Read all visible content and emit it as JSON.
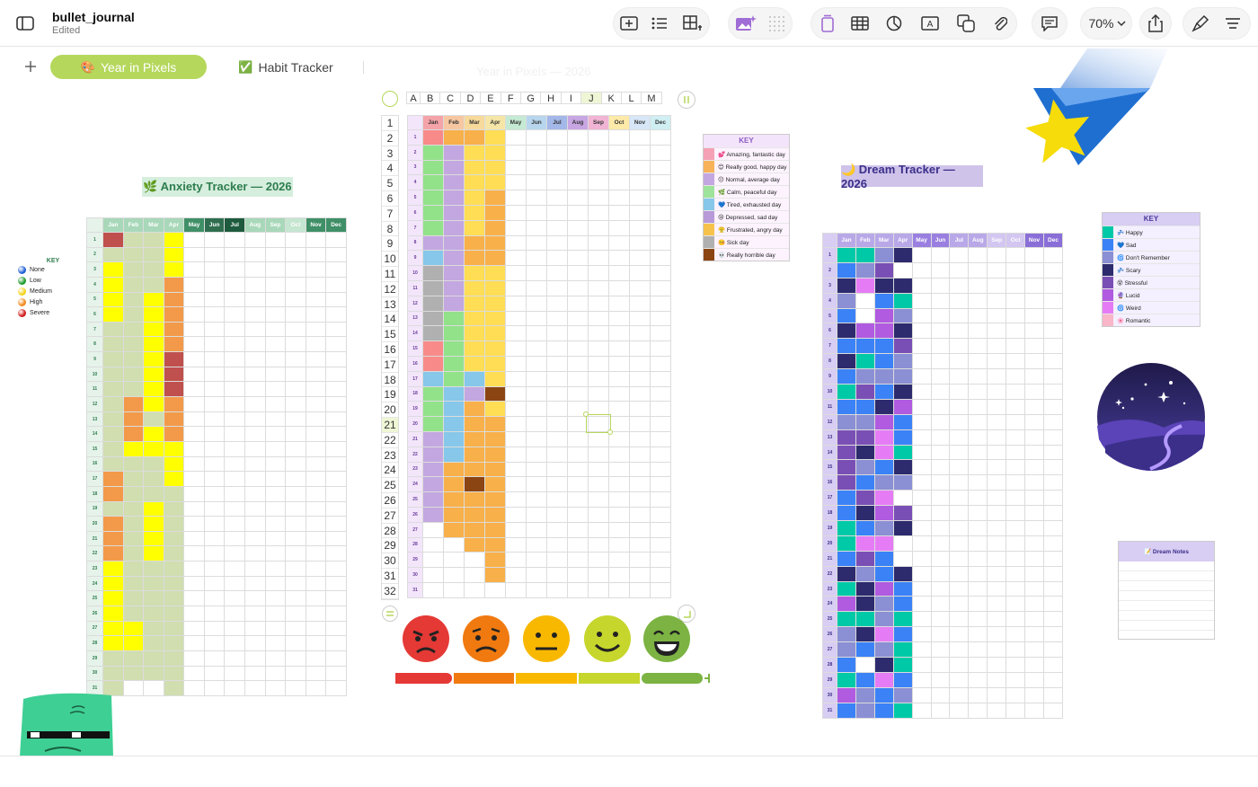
{
  "document": {
    "title": "bullet_journal",
    "status": "Edited"
  },
  "toolbar": {
    "zoom": "70%"
  },
  "tabs": [
    {
      "label": "Year in Pixels",
      "icon": "palette-icon",
      "emoji": "🎨",
      "active": true
    },
    {
      "label": "Habit Tracker",
      "icon": "check-icon",
      "emoji": "✅",
      "active": false
    }
  ],
  "months": [
    "Jan",
    "Feb",
    "Mar",
    "Apr",
    "May",
    "Jun",
    "Jul",
    "Aug",
    "Sep",
    "Oct",
    "Nov",
    "Dec"
  ],
  "col_letters": [
    "A",
    "B",
    "C",
    "D",
    "E",
    "F",
    "G",
    "H",
    "I",
    "J",
    "K",
    "L",
    "M"
  ],
  "anxiety": {
    "title": "🌿 Anxiety Tracker — 2026",
    "key_title": "KEY",
    "key": [
      {
        "label": "None",
        "color": "#1f5fd6"
      },
      {
        "label": "Low",
        "color": "#1a9a2a"
      },
      {
        "label": "Medium",
        "color": "#f2d31b"
      },
      {
        "label": "High",
        "color": "#f08a1c"
      },
      {
        "label": "Severe",
        "color": "#d11a1a"
      }
    ],
    "header_colors": [
      "#a8d8b9",
      "#a8d8b9",
      "#a8d8b9",
      "#a8d8b9",
      "#3f8f67",
      "#2e6e4f",
      "#1e5a3d",
      "#a8d8b9",
      "#a8d8b9",
      "#c5e6d0",
      "#3f8f67",
      "#3f8f67"
    ],
    "palette": {
      "g": "#d0deb0",
      "y": "#ffff00",
      "o": "#f39a4a",
      "r": "#c0504d",
      "w": "#ffffff"
    },
    "cols": [
      "rgyyyyggggggggggoogoooyyyyyyggggg",
      "gggggggggggoooygggggggggggyyggwww",
      "ggggyyyyyyyygyygggyyyyggggggggwww",
      "yyyooooorrroooyyygggggggggggggggw"
    ]
  },
  "mood": {
    "key_title": "KEY",
    "key": [
      {
        "label": "💕 Amazing, fantastic day",
        "color": "#f5a1b5"
      },
      {
        "label": "😊 Really good, happy day",
        "color": "#f8b25a"
      },
      {
        "label": "😐 Normal, average day",
        "color": "#c3a7e0"
      },
      {
        "label": "🌿 Calm, peaceful day",
        "color": "#9ee39b"
      },
      {
        "label": "💙 Tired, exhausted day",
        "color": "#86c7ea"
      },
      {
        "label": "😢 Depressed, sad day",
        "color": "#b89ad8"
      },
      {
        "label": "😤 Frustrated, angry day",
        "color": "#f6c24b"
      },
      {
        "label": "🤒 Sick day",
        "color": "#b0b0b0"
      },
      {
        "label": "💀 Really horrible day",
        "color": "#8b4513"
      }
    ],
    "header_colors": [
      "#f4a3a8",
      "#f7c7a1",
      "#f7d99b",
      "#f5e6a8",
      "#c5ead3",
      "#b7d6ee",
      "#a3b7e8",
      "#c7a6e3",
      "#f1b4d4",
      "#fde9a8",
      "#d7e7f7",
      "#cfeff2"
    ],
    "palette": {
      "p": "#f88a8a",
      "o": "#f8b04a",
      "l": "#c3a7e0",
      "g": "#92e28a",
      "b": "#86c7ea",
      "y": "#ffdd55",
      "a": "#b0b0b0",
      "br": "#8b4513",
      "w": "#ffffff"
    },
    "cols": [
      "pgggggglbaaaaappbgggllllll",
      "olllllllllllgggggbbbbbooooo",
      "oyyyyyyooyyyyyyybloooooooooo",
      "yyyyoooooyyyyyyyyyyooooooooooo"
    ]
  },
  "dream": {
    "title": "🌙 Dream Tracker — 2026",
    "key_title": "KEY",
    "key": [
      {
        "label": "💤 Happy",
        "color": "#00c9a7"
      },
      {
        "label": "💙 Sad",
        "color": "#3b82f6"
      },
      {
        "label": "🌀 Don't Remember",
        "color": "#8b8fd4"
      },
      {
        "label": "💤 Scary",
        "color": "#2d2b6e"
      },
      {
        "label": "😵 Stressful",
        "color": "#7a4fb5"
      },
      {
        "label": "🔮 Lucid",
        "color": "#b05be0"
      },
      {
        "label": "🌀 Weird",
        "color": "#e67cf5"
      },
      {
        "label": "🌸 Romantic",
        "color": "#f9b6c8"
      }
    ],
    "header_colors": [
      "#b9a8e8",
      "#b9a8e8",
      "#b9a8e8",
      "#b9a8e8",
      "#9a7fe0",
      "#9a7fe0",
      "#b9a8e8",
      "#b9a8e8",
      "#d3c6f1",
      "#d3c6f1",
      "#8a6ed8",
      "#8a6ed8"
    ],
    "notes_title": "📝 Dream Notes"
  },
  "decor": {
    "shooting_star": "star-icon",
    "night_scene": "night-sky-illustration",
    "character": "green-character-illustration"
  },
  "mood_faces": [
    {
      "name": "angry-face-icon",
      "color": "#e53935"
    },
    {
      "name": "sad-face-icon",
      "color": "#f07a10"
    },
    {
      "name": "neutral-face-icon",
      "color": "#f9b800"
    },
    {
      "name": "happy-face-icon",
      "color": "#c6d62c"
    },
    {
      "name": "grin-face-icon",
      "color": "#7cb342"
    }
  ],
  "faded_title": "Year in Pixels — 2026"
}
